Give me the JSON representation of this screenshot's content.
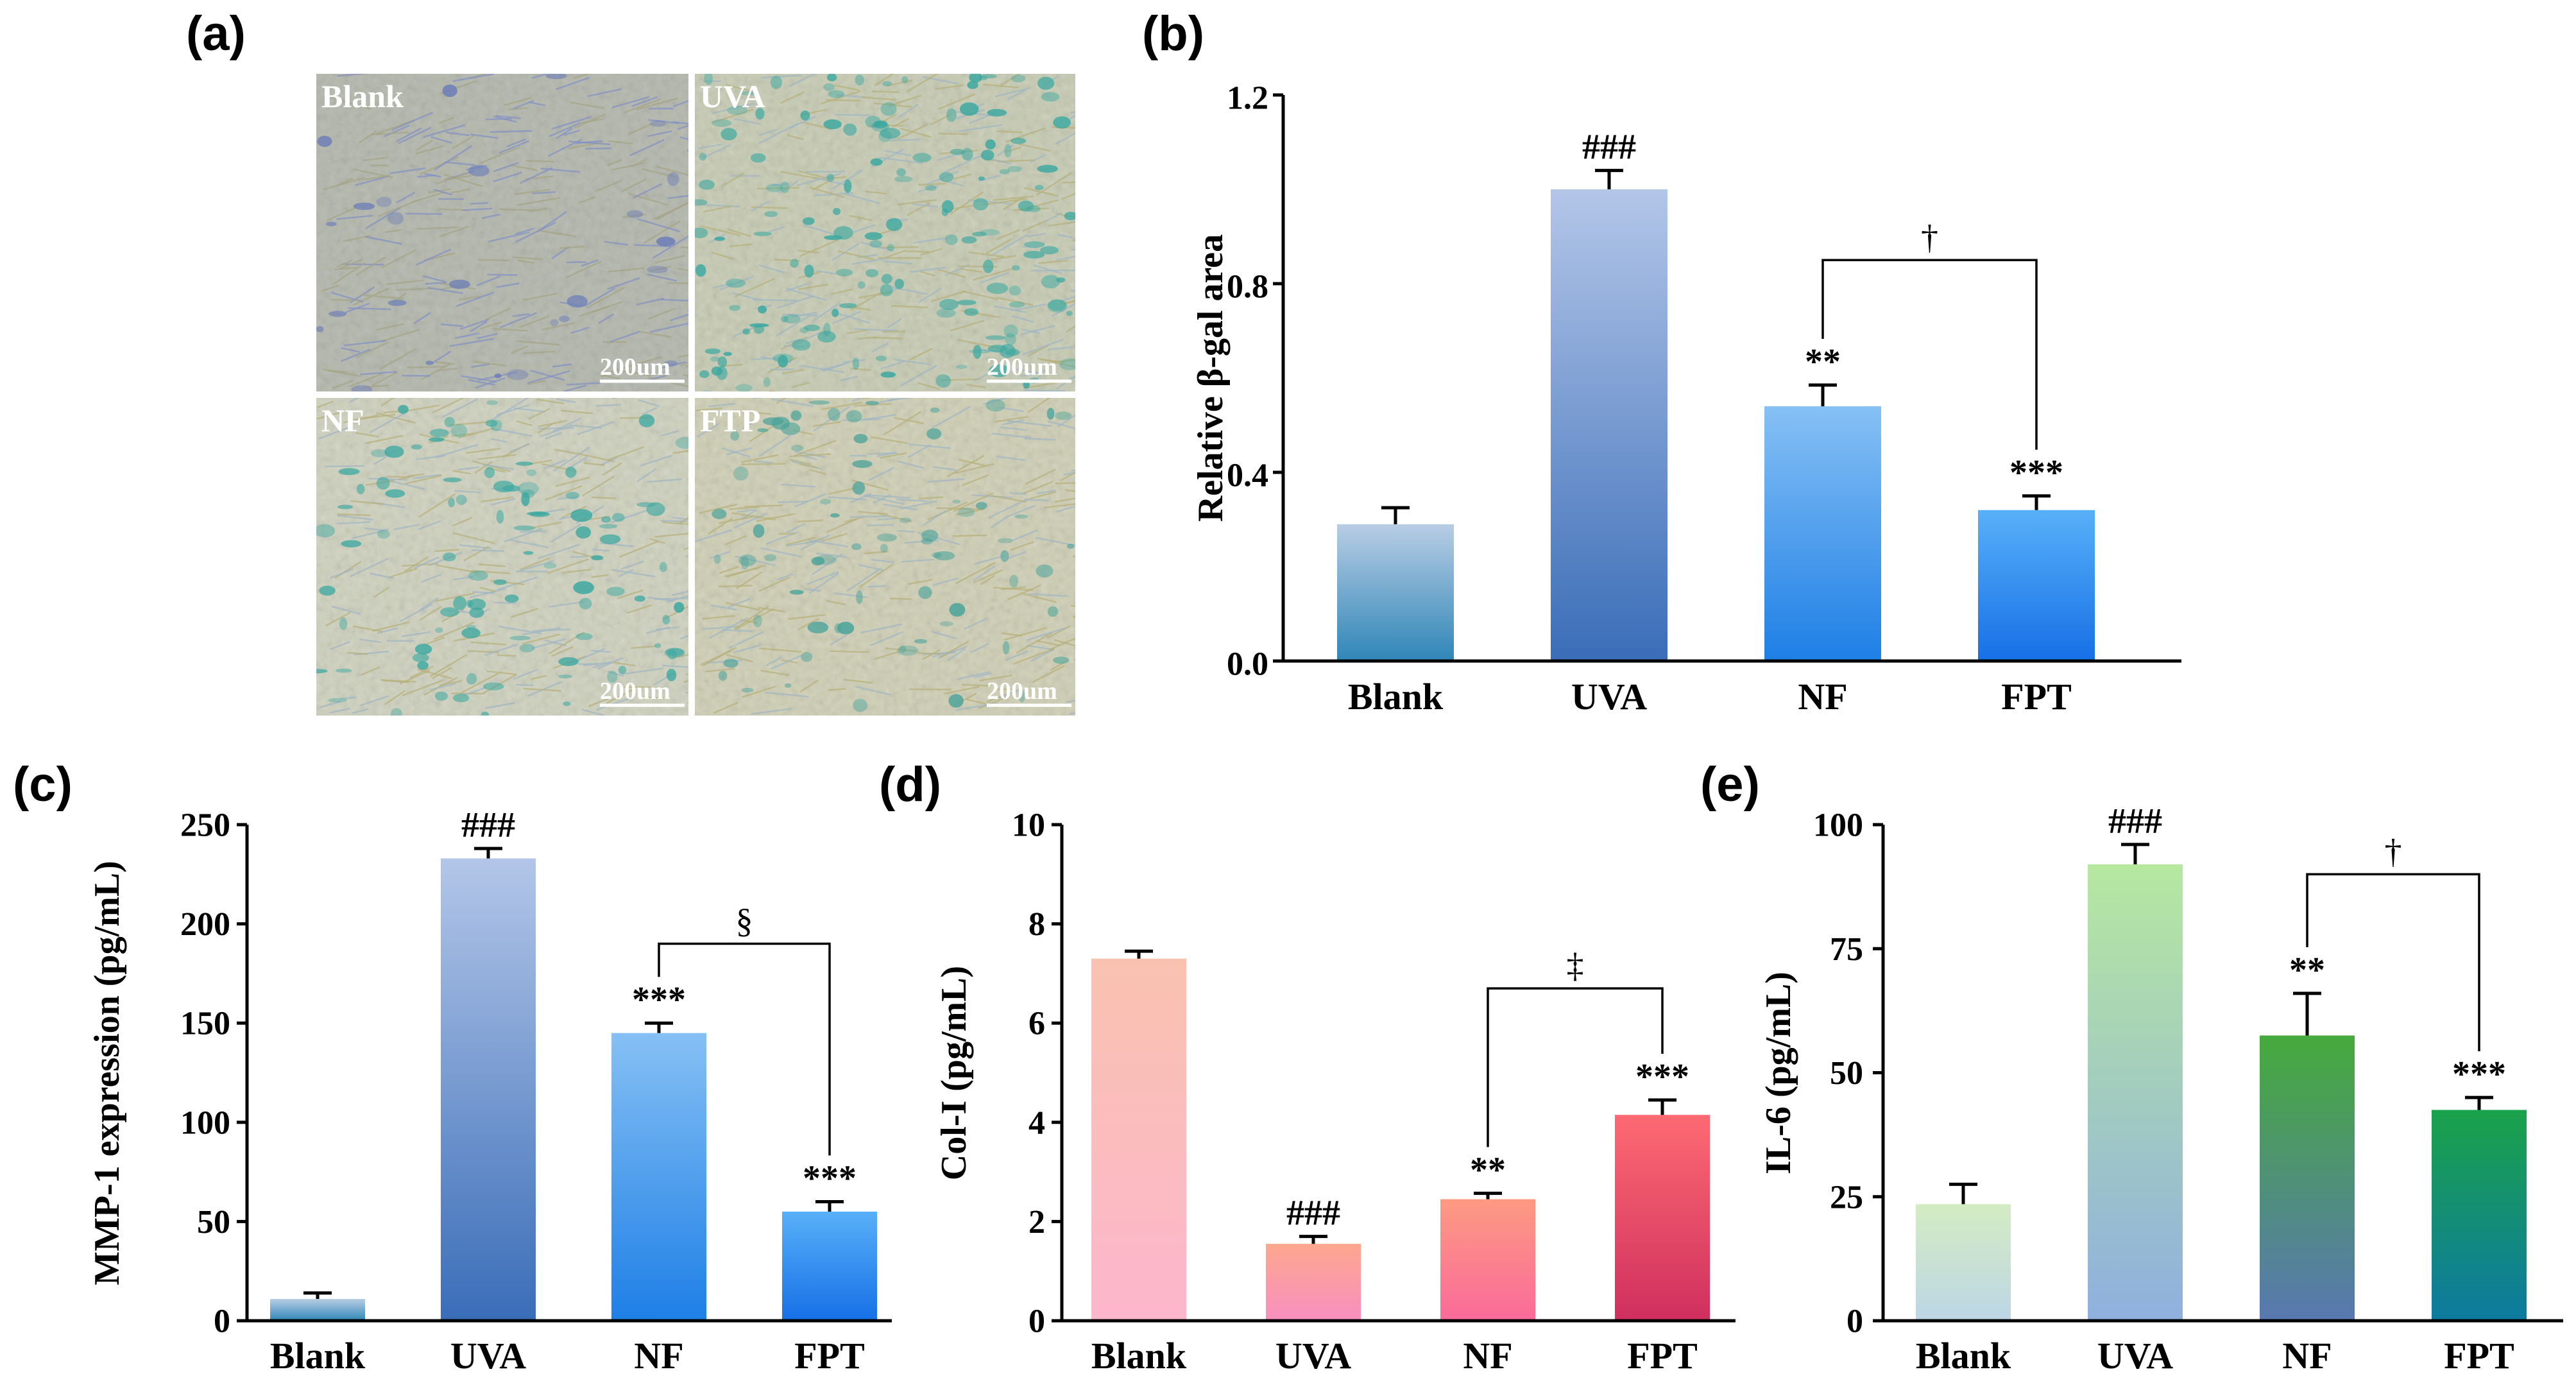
{
  "panels": {
    "a": "(a)",
    "b": "(b)",
    "c": "(c)",
    "d": "(d)",
    "e": "(e)"
  },
  "micrographs": [
    {
      "label": "Blank",
      "scale": "200um",
      "bg": "#c9c9a8",
      "tint": "#6f7fb8"
    },
    {
      "label": "UVA",
      "scale": "200um",
      "bg": "#c6cbb2",
      "tint": "#3aa8a0"
    },
    {
      "label": "NF",
      "scale": "200um",
      "bg": "#cfd1bd",
      "tint": "#3aa8a0"
    },
    {
      "label": "FTP",
      "scale": "200um",
      "bg": "#cfcfb4",
      "tint": "#4aa39a"
    }
  ],
  "chart_data": [
    {
      "id": "b",
      "type": "bar",
      "categories": [
        "Blank",
        "UVA",
        "NF",
        "FPT"
      ],
      "values": [
        0.29,
        1.0,
        0.54,
        0.32
      ],
      "errors": [
        0.035,
        0.04,
        0.045,
        0.03
      ],
      "ylabel": "Relative β-gal area",
      "ylim": [
        0,
        1.2
      ],
      "yticks": [
        0.0,
        0.4,
        0.8,
        1.2
      ],
      "tick_labels": [
        "0.0",
        "0.4",
        "0.8",
        "1.2"
      ],
      "annotations": [
        "",
        "###",
        "**",
        "***"
      ],
      "bracket": {
        "from": 2,
        "to": 3,
        "level": 0.85,
        "symbol": "†"
      },
      "colors": [
        [
          "#b8cde4",
          "#2f86b8"
        ],
        [
          "#b3c6e8",
          "#3a6db8"
        ],
        [
          "#86c0f4",
          "#1e7fe6"
        ],
        [
          "#58b0f8",
          "#1670e6"
        ]
      ]
    },
    {
      "id": "c",
      "type": "bar",
      "categories": [
        "Blank",
        "UVA",
        "NF",
        "FPT"
      ],
      "values": [
        11,
        233,
        145,
        55
      ],
      "errors": [
        3,
        5,
        5,
        5
      ],
      "ylabel": "MMP-1 expression (pg/mL)",
      "ylim": [
        0,
        250
      ],
      "yticks": [
        0,
        50,
        100,
        150,
        200,
        250
      ],
      "tick_labels": [
        "0",
        "50",
        "100",
        "150",
        "200",
        "250"
      ],
      "annotations": [
        "",
        "###",
        "***",
        "***"
      ],
      "bracket": {
        "from": 2,
        "to": 3,
        "level": 190,
        "symbol": "§"
      },
      "colors": [
        [
          "#b8cde4",
          "#2f86b8"
        ],
        [
          "#b3c6e8",
          "#3a6db8"
        ],
        [
          "#86c0f4",
          "#1e7fe6"
        ],
        [
          "#58b0f8",
          "#1670e6"
        ]
      ]
    },
    {
      "id": "d",
      "type": "bar",
      "categories": [
        "Blank",
        "UVA",
        "NF",
        "FPT"
      ],
      "values": [
        7.3,
        1.55,
        2.45,
        4.15
      ],
      "errors": [
        0.15,
        0.15,
        0.12,
        0.3
      ],
      "ylabel": "Col-I (pg/mL)",
      "ylim": [
        0,
        10
      ],
      "yticks": [
        0,
        2,
        4,
        6,
        8,
        10
      ],
      "tick_labels": [
        "0",
        "2",
        "4",
        "6",
        "8",
        "10"
      ],
      "annotations": [
        "",
        "###",
        "**",
        "***"
      ],
      "bracket": {
        "from": 2,
        "to": 3,
        "level": 6.7,
        "symbol": "‡"
      },
      "colors": [
        [
          "#f9c2b0",
          "#fdb6cc"
        ],
        [
          "#fda78e",
          "#f88fc0"
        ],
        [
          "#fd9a82",
          "#fa6a9a"
        ],
        [
          "#fd6a72",
          "#d02f5e"
        ]
      ]
    },
    {
      "id": "e",
      "type": "bar",
      "categories": [
        "Blank",
        "UVA",
        "NF",
        "FPT"
      ],
      "values": [
        23.5,
        92,
        57.5,
        42.5
      ],
      "errors": [
        4,
        4,
        8.5,
        2.5
      ],
      "ylabel": "IL-6 (pg/mL)",
      "ylim": [
        0,
        100
      ],
      "yticks": [
        0,
        25,
        50,
        75,
        100
      ],
      "tick_labels": [
        "0",
        "25",
        "50",
        "75",
        "100"
      ],
      "annotations": [
        "",
        "###",
        "**",
        "***"
      ],
      "bracket": {
        "from": 2,
        "to": 3,
        "level": 90,
        "symbol": "†"
      },
      "colors": [
        [
          "#d4ecc2",
          "#bcd6e6"
        ],
        [
          "#b6e8a0",
          "#8fb0de"
        ],
        [
          "#46aa3c",
          "#5878b0"
        ],
        [
          "#1aa24a",
          "#0d7aa0"
        ]
      ]
    }
  ]
}
